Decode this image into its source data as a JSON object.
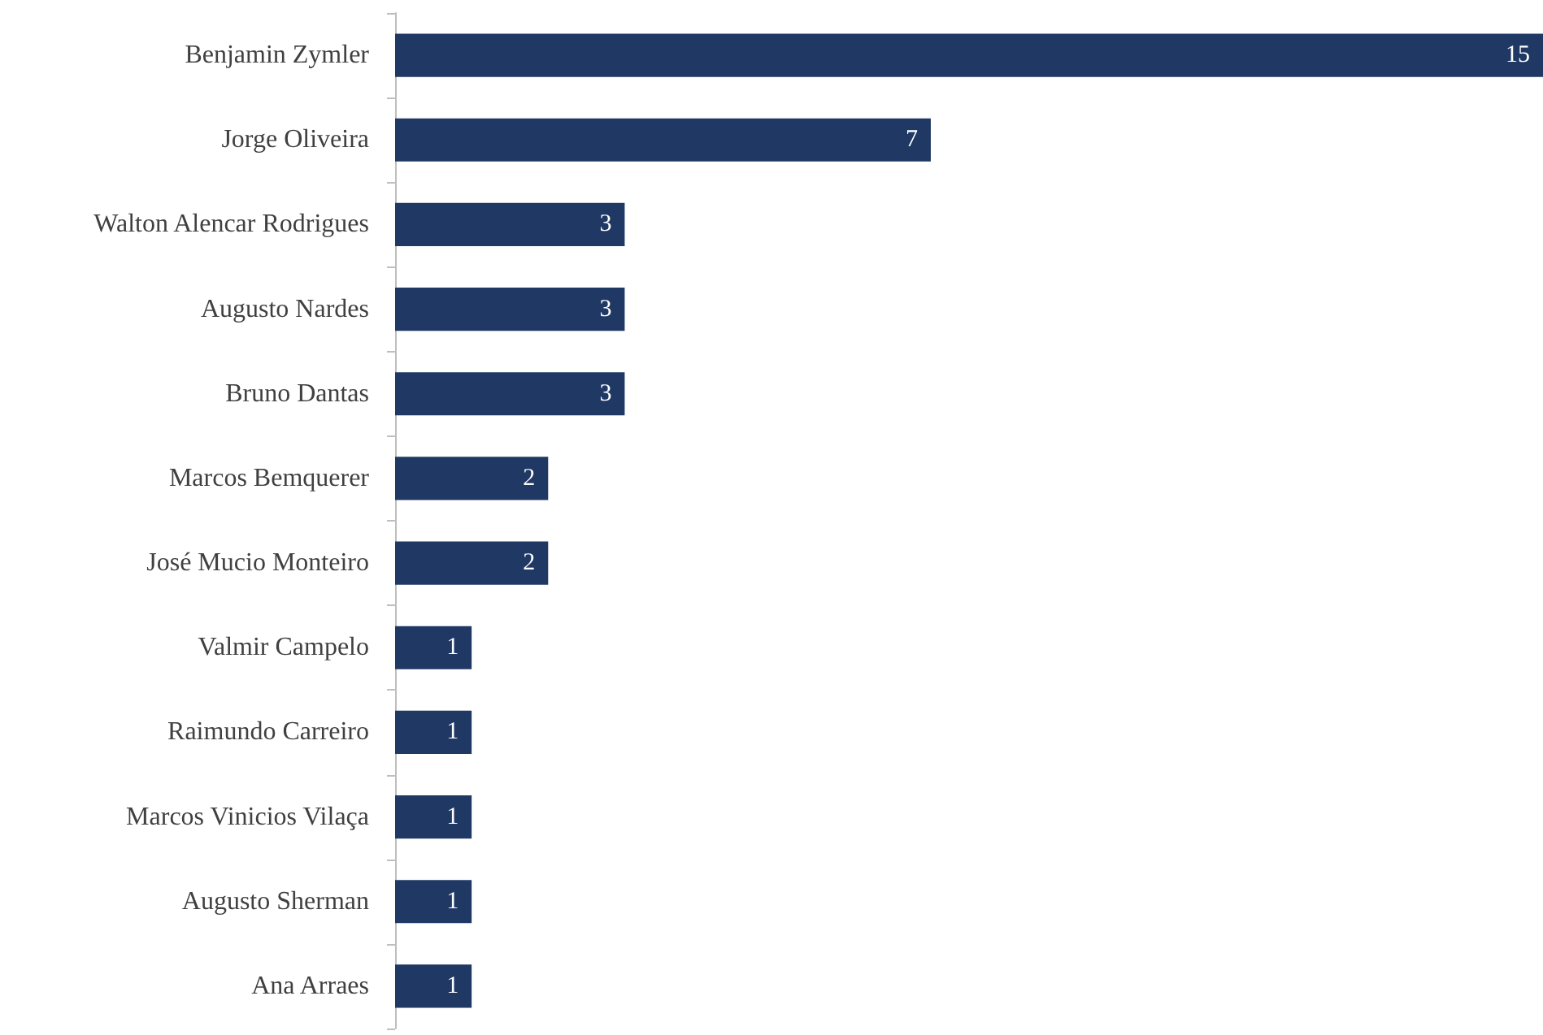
{
  "chart_data": {
    "type": "bar",
    "orientation": "horizontal",
    "categories": [
      "Benjamin Zymler",
      "Jorge Oliveira",
      "Walton Alencar Rodrigues",
      "Augusto Nardes",
      "Bruno Dantas",
      "Marcos Bemquerer",
      "José Mucio Monteiro",
      "Valmir Campelo",
      "Raimundo Carreiro",
      "Marcos Vinicios Vilaça",
      "Augusto Sherman",
      "Ana Arraes"
    ],
    "values": [
      15,
      7,
      3,
      3,
      3,
      2,
      2,
      1,
      1,
      1,
      1,
      1
    ],
    "color": "#1f3864",
    "data_labels": true
  }
}
